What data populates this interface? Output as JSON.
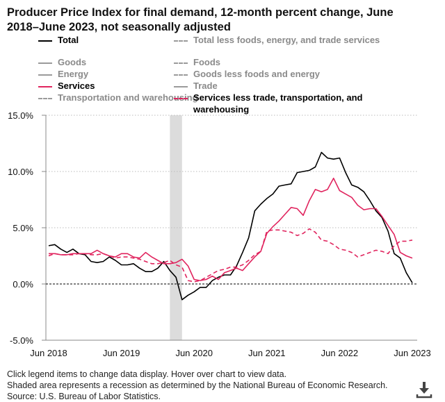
{
  "title": "Producer Price Index for final demand, 12-month percent change, June 2018–June 2023, not seasonally adjusted",
  "legend": [
    {
      "label": "Total",
      "color": "#000000",
      "style": "solid",
      "active": true
    },
    {
      "label": "Total less foods, energy, and trade services",
      "color": "#9a9a9a",
      "style": "dashed",
      "active": false
    },
    {
      "label": "Goods",
      "color": "#9a9a9a",
      "style": "solid",
      "active": false
    },
    {
      "label": "Foods",
      "color": "#9a9a9a",
      "style": "dashed",
      "active": false
    },
    {
      "label": "Energy",
      "color": "#9a9a9a",
      "style": "solid",
      "active": false
    },
    {
      "label": "Goods less foods and energy",
      "color": "#9a9a9a",
      "style": "dashed",
      "active": false
    },
    {
      "label": "Services",
      "color": "#e0245e",
      "style": "solid",
      "active": true
    },
    {
      "label": "Trade",
      "color": "#9a9a9a",
      "style": "solid",
      "active": false
    },
    {
      "label": "Transportation and warehousing",
      "color": "#9a9a9a",
      "style": "dashed",
      "active": false
    },
    {
      "label": "Services less trade, transportation, and warehousing",
      "color": "#e0245e",
      "style": "dashed",
      "active": true
    }
  ],
  "chart_data": {
    "type": "line",
    "x_start": "Jun 2018",
    "x_end": "Jun 2023",
    "frequency": "monthly",
    "xticks": [
      "Jun 2018",
      "Jun 2019",
      "Jun 2020",
      "Jun 2021",
      "Jun 2022",
      "Jun 2023"
    ],
    "yticks": [
      "15.0%",
      "10.0%",
      "5.0%",
      "0.0%",
      "-5.0%"
    ],
    "ylim": [
      -5,
      15
    ],
    "grid": "horizontal dotted",
    "recession": [
      "Feb 2020",
      "Apr 2020"
    ],
    "series": [
      {
        "name": "Total",
        "color": "#000000",
        "style": "solid",
        "values": [
          3.4,
          3.5,
          3.1,
          2.8,
          3.1,
          2.7,
          2.6,
          2.0,
          1.9,
          2.0,
          2.4,
          2.1,
          1.7,
          1.7,
          1.8,
          1.4,
          1.1,
          1.1,
          1.4,
          2.0,
          1.2,
          0.6,
          -1.4,
          -1.0,
          -0.7,
          -0.3,
          -0.3,
          0.3,
          0.6,
          0.8,
          0.8,
          1.6,
          2.8,
          4.1,
          6.5,
          7.1,
          7.6,
          8.0,
          8.7,
          8.8,
          8.9,
          9.9,
          10.0,
          10.1,
          10.4,
          11.7,
          11.2,
          11.1,
          11.2,
          9.9,
          8.8,
          8.6,
          8.2,
          7.4,
          6.5,
          5.9,
          4.7,
          2.7,
          2.3,
          1.0,
          0.1
        ]
      },
      {
        "name": "Services",
        "color": "#e0245e",
        "style": "solid",
        "values": [
          2.7,
          2.7,
          2.6,
          2.6,
          2.7,
          2.7,
          2.7,
          2.7,
          3.0,
          2.7,
          2.5,
          2.4,
          2.7,
          2.7,
          2.4,
          2.3,
          2.8,
          2.4,
          2.1,
          1.8,
          1.8,
          1.9,
          2.2,
          1.6,
          0.4,
          0.3,
          0.4,
          0.7,
          0.4,
          1.0,
          1.2,
          1.4,
          1.2,
          1.8,
          2.4,
          2.9,
          4.5,
          5.1,
          5.6,
          6.2,
          6.8,
          6.7,
          6.1,
          7.4,
          8.4,
          8.2,
          8.4,
          9.4,
          8.3,
          8.0,
          7.7,
          7.0,
          6.6,
          6.7,
          6.7,
          6.0,
          5.2,
          4.4,
          2.8,
          2.5,
          2.3
        ]
      },
      {
        "name": "Services less trade, transportation, and warehousing",
        "color": "#e0245e",
        "style": "dashed",
        "values": [
          2.5,
          2.7,
          2.6,
          2.6,
          2.6,
          2.7,
          2.7,
          2.6,
          2.6,
          2.7,
          2.5,
          2.3,
          2.4,
          2.4,
          2.3,
          2.2,
          2.0,
          1.8,
          1.8,
          1.9,
          2.1,
          1.7,
          1.5,
          0.3,
          0.2,
          0.3,
          0.6,
          0.9,
          1.2,
          1.3,
          1.5,
          1.5,
          1.7,
          2.1,
          2.6,
          2.9,
          4.7,
          4.8,
          4.8,
          4.7,
          4.6,
          4.3,
          4.5,
          4.9,
          4.6,
          3.9,
          3.8,
          3.5,
          3.1,
          3.0,
          2.8,
          2.4,
          2.6,
          2.8,
          3.0,
          2.9,
          2.7,
          3.4,
          3.8,
          3.8,
          3.9
        ]
      }
    ]
  },
  "footer": {
    "line1": "Click legend items to change data display. Hover over chart to view data.",
    "line2": "Shaded area represents a recession as determined by the National Bureau of Economic Research.",
    "line3": "Source: U.S. Bureau of Labor Statistics."
  },
  "download_icon": "download-icon"
}
